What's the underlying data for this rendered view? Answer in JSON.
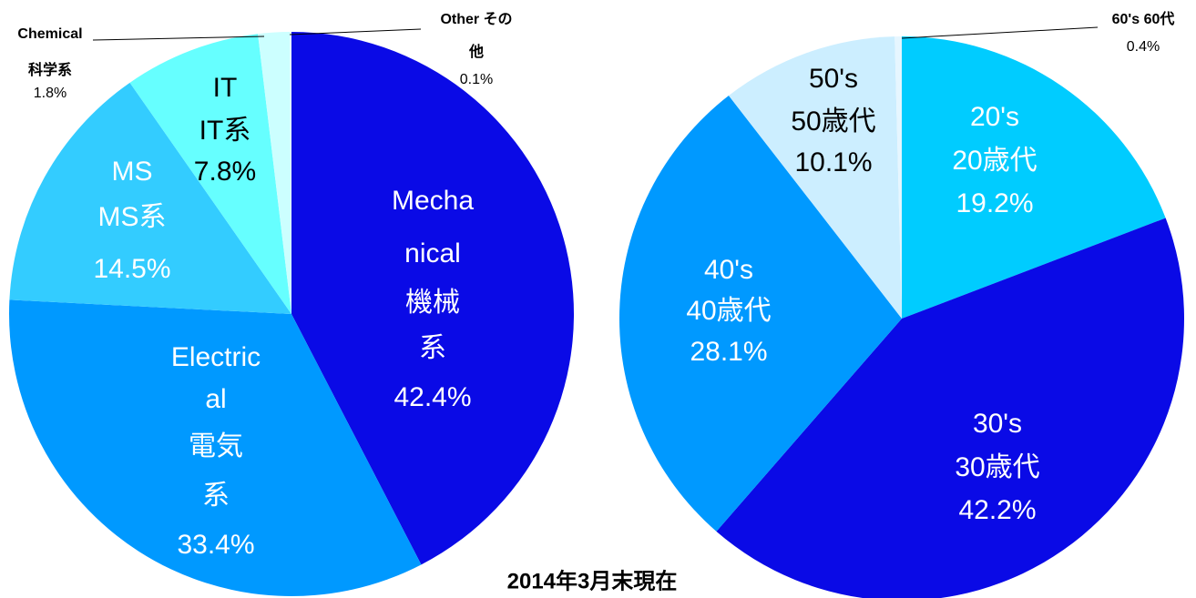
{
  "chart_data": [
    {
      "type": "pie",
      "categories": [
        [
          "Mecha",
          "nical",
          "機械",
          "系"
        ],
        [
          "Electric",
          "al",
          "電気",
          "系"
        ],
        [
          "MS",
          "MS系"
        ],
        [
          "IT",
          "IT系"
        ],
        [
          "Chemical",
          "科学系"
        ],
        [
          "Other その",
          "他"
        ]
      ],
      "values": [
        42.4,
        33.4,
        14.5,
        7.8,
        1.8,
        0.1
      ],
      "value_labels": [
        "42.4%",
        "33.4%",
        "14.5%",
        "7.8%",
        "1.8%",
        "0.1%"
      ],
      "colors": [
        "#0a0ae6",
        "#0099ff",
        "#33ccff",
        "#66ffff",
        "#ccffff",
        "#e6ffff"
      ]
    },
    {
      "type": "pie",
      "categories": [
        [
          "20's",
          "20歳代"
        ],
        [
          "30's",
          "30歳代"
        ],
        [
          "40's",
          "40歳代"
        ],
        [
          "50's",
          "50歳代"
        ],
        [
          "60's  60代"
        ]
      ],
      "values": [
        19.2,
        42.2,
        28.1,
        10.1,
        0.4
      ],
      "value_labels": [
        "19.2%",
        "42.2%",
        "28.1%",
        "10.1%",
        "0.4%"
      ],
      "colors": [
        "#00ccff",
        "#0a0ae6",
        "#0099ff",
        "#cceeff",
        "#e6f6ff"
      ]
    }
  ],
  "note": "2014年3月末現在"
}
